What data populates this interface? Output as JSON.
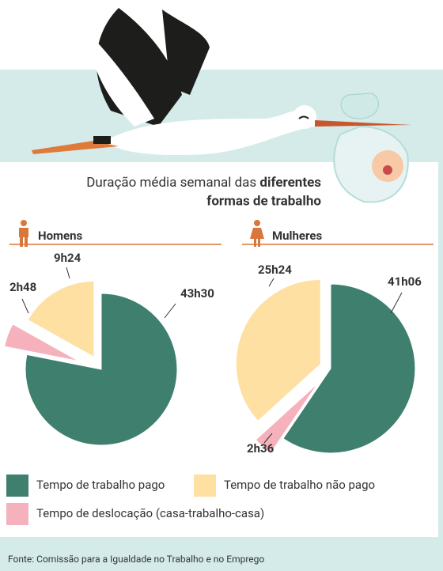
{
  "title_parts": [
    "Duração média semanal das",
    "diferentes",
    "formas de trabalho"
  ],
  "chart_data": [
    {
      "type": "pie",
      "title": "Homens",
      "categories": [
        "Tempo de trabalho pago",
        "Tempo de deslocação (casa-trabalho-casa)",
        "Tempo de trabalho não pago"
      ],
      "values": [
        43.5,
        2.8,
        9.4
      ],
      "value_labels": [
        "43h30",
        "2h48",
        "9h24"
      ],
      "colors": [
        "#3f7f6d",
        "#f5b2bc",
        "#fde0a2"
      ]
    },
    {
      "type": "pie",
      "title": "Mulheres",
      "categories": [
        "Tempo de trabalho pago",
        "Tempo de deslocação (casa-trabalho-casa)",
        "Tempo de trabalho não pago"
      ],
      "values": [
        41.1,
        2.6,
        25.4
      ],
      "value_labels": [
        "41h06",
        "2h36",
        "25h24"
      ],
      "colors": [
        "#3f7f6d",
        "#f5b2bc",
        "#fde0a2"
      ]
    }
  ],
  "source": "Fonte: Comissão para a Igualdade no Trabalho e no Emprego"
}
